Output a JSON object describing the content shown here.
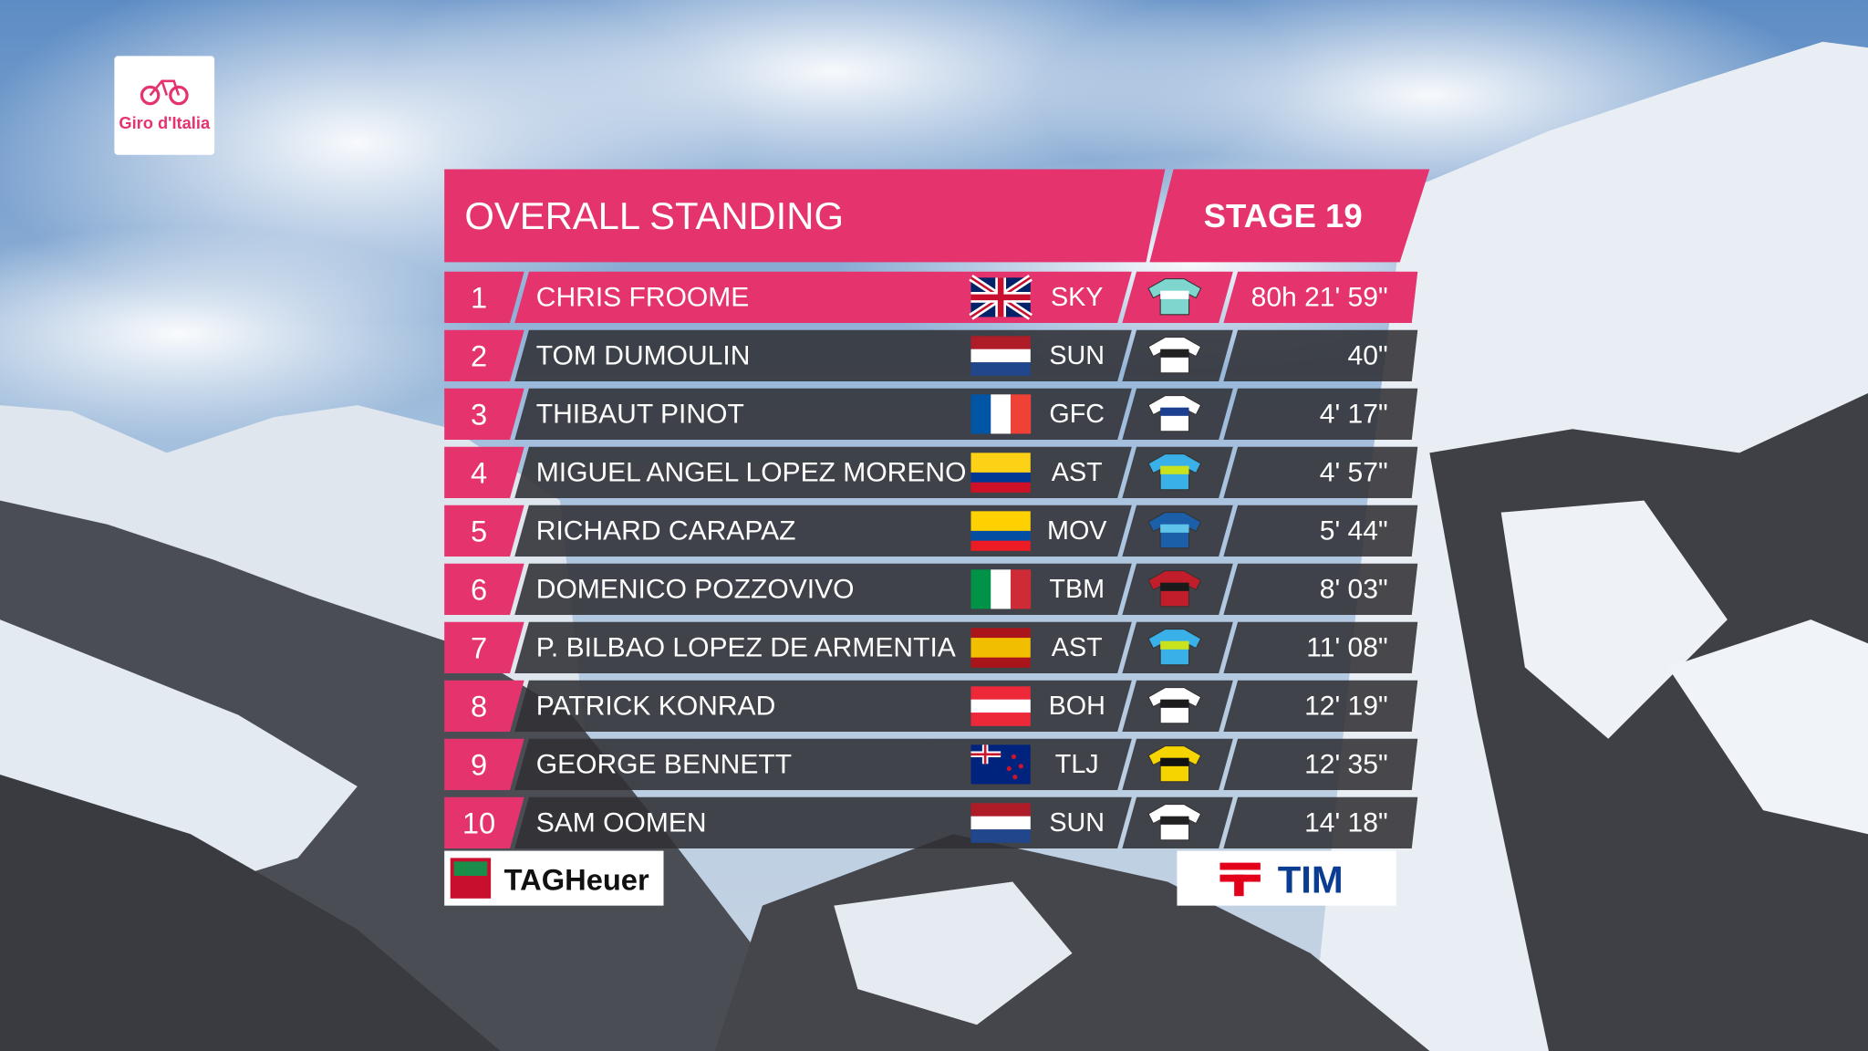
{
  "logo": "Giro d'Italia",
  "header": {
    "title": "OVERALL STANDING",
    "stage": "STAGE 19"
  },
  "table": {
    "rows": [
      {
        "rank": 1,
        "name": "CHRIS FROOME",
        "team": "SKY",
        "time": "80h 21' 59\""
      },
      {
        "rank": 2,
        "name": "TOM DUMOULIN",
        "team": "SUN",
        "time": "40\""
      },
      {
        "rank": 3,
        "name": "THIBAUT PINOT",
        "team": "GFC",
        "time": "4' 17\""
      },
      {
        "rank": 4,
        "name": "MIGUEL ANGEL LOPEZ MORENO",
        "team": "AST",
        "time": "4' 57\""
      },
      {
        "rank": 5,
        "name": "RICHARD CARAPAZ",
        "team": "MOV",
        "time": "5' 44\""
      },
      {
        "rank": 6,
        "name": "DOMENICO POZZOVIVO",
        "team": "TBM",
        "time": "8' 03\""
      },
      {
        "rank": 7,
        "name": "P. BILBAO LOPEZ DE ARMENTIA",
        "team": "AST",
        "time": "11' 08\""
      },
      {
        "rank": 8,
        "name": "PATRICK KONRAD",
        "team": "BOH",
        "time": "12' 19\""
      },
      {
        "rank": 9,
        "name": "GEORGE BENNETT",
        "team": "TLJ",
        "time": "12' 35\""
      },
      {
        "rank": 10,
        "name": "SAM OOMEN",
        "team": "SUN",
        "time": "14' 18\""
      }
    ]
  },
  "sponsors": {
    "left": "TAGHeuer",
    "right": "TIM"
  }
}
